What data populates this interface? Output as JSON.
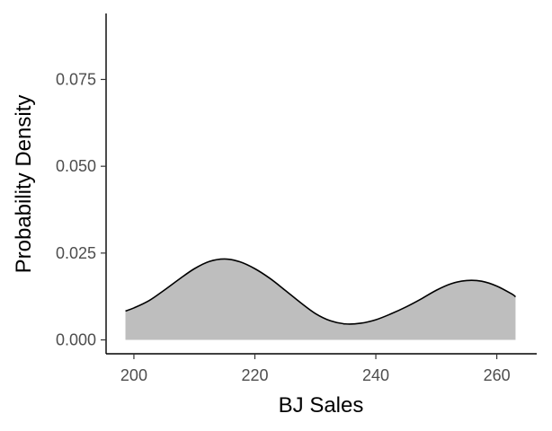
{
  "chart_data": {
    "type": "area",
    "title": "",
    "xlabel": "BJ Sales",
    "ylabel": "Probability Density",
    "xlim": [
      195.4,
      266.6
    ],
    "ylim": [
      -0.004,
      0.094
    ],
    "x_ticks": [
      200,
      220,
      240,
      260
    ],
    "x_tick_labels": [
      "200",
      "220",
      "240",
      "260"
    ],
    "y_ticks": [
      0.0,
      0.025,
      0.05,
      0.075
    ],
    "y_tick_labels": [
      "0.000",
      "0.025",
      "0.050",
      "0.075"
    ],
    "grid": false,
    "legend": "none",
    "fill_color": "#bebebe",
    "line_color": "#000000",
    "series": [
      {
        "x": [
          198.6,
          200,
          202.5,
          205,
          207.5,
          210,
          212.5,
          215,
          217.5,
          220,
          222.5,
          225,
          227.5,
          230,
          232.5,
          235,
          237.5,
          240,
          242.5,
          245,
          247.5,
          250,
          252.5,
          255,
          257.5,
          260,
          262.5,
          263.1
        ],
        "y": [
          0.0083,
          0.0092,
          0.0113,
          0.0143,
          0.0175,
          0.0205,
          0.0226,
          0.0233,
          0.0225,
          0.0205,
          0.0177,
          0.0143,
          0.0108,
          0.0076,
          0.0055,
          0.0046,
          0.0048,
          0.0058,
          0.0075,
          0.0095,
          0.0118,
          0.0143,
          0.0162,
          0.0171,
          0.0169,
          0.0155,
          0.0132,
          0.0124
        ]
      }
    ]
  }
}
